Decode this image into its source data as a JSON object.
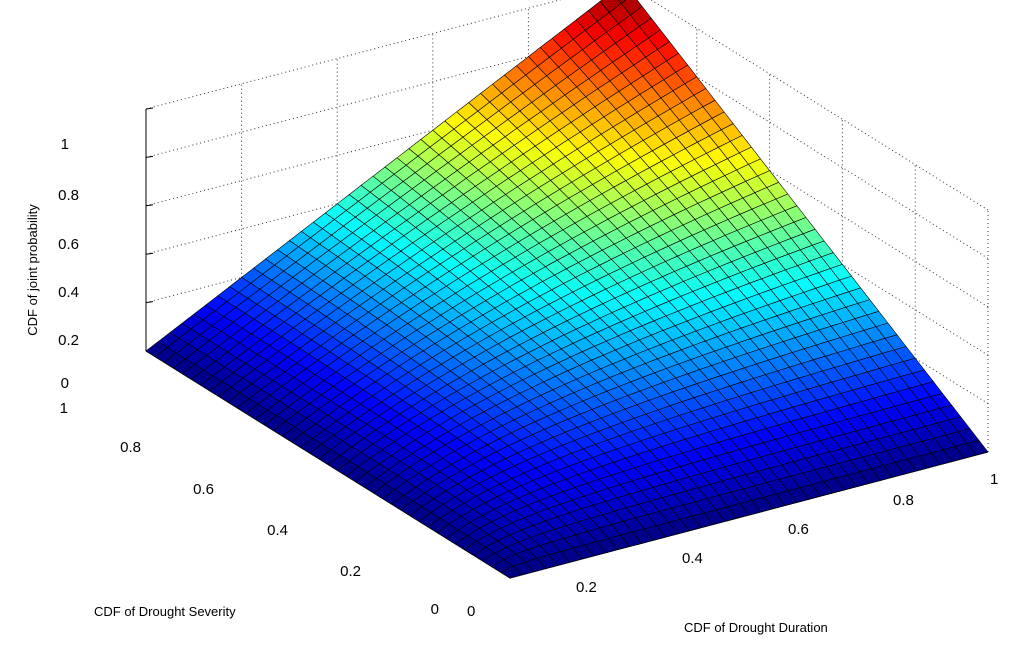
{
  "chart_data": {
    "type": "surface",
    "title": "",
    "xlabel": "CDF of Drought Duration",
    "ylabel": "CDF of Drought Severity",
    "zlabel": "CDF of joint probability",
    "xlim": [
      0,
      1
    ],
    "ylim": [
      0,
      1
    ],
    "zlim": [
      0,
      1
    ],
    "x_ticks": [
      "0",
      "0.2",
      "0.4",
      "0.6",
      "0.8",
      "1"
    ],
    "y_ticks": [
      "0",
      "0.2",
      "0.4",
      "0.6",
      "0.8",
      "1"
    ],
    "z_ticks": [
      "0",
      "0.2",
      "0.4",
      "0.6",
      "0.8",
      "1"
    ],
    "grid": true,
    "colormap": "jet",
    "surface_function": "C(u,v) = u*v/(u+v-u*v)",
    "grid_resolution": 40,
    "sample_values": [
      {
        "duration": 0.2,
        "severity": 0.2,
        "joint_cdf": 0.11
      },
      {
        "duration": 0.5,
        "severity": 0.5,
        "joint_cdf": 0.33
      },
      {
        "duration": 0.8,
        "severity": 0.8,
        "joint_cdf": 0.67
      },
      {
        "duration": 1.0,
        "severity": 0.5,
        "joint_cdf": 0.5
      },
      {
        "duration": 0.5,
        "severity": 1.0,
        "joint_cdf": 0.5
      },
      {
        "duration": 1.0,
        "severity": 1.0,
        "joint_cdf": 1.0
      }
    ]
  }
}
